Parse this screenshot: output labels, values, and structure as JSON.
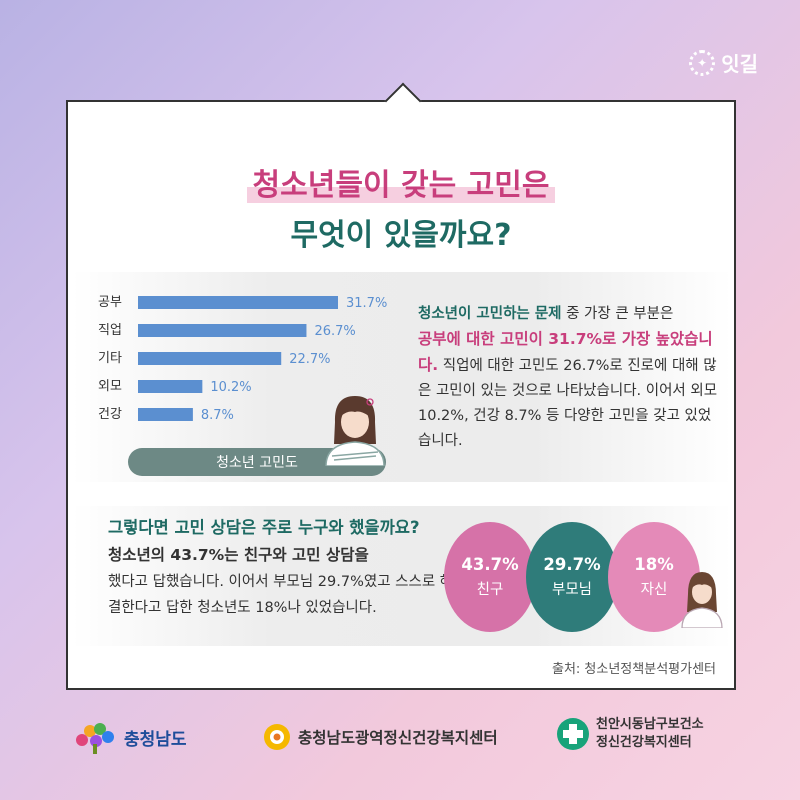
{
  "brand": {
    "name": "잇길"
  },
  "title": {
    "line1": "청소년들이 갖는 고민은",
    "line2": "무엇이 있을까요?"
  },
  "chart_data": {
    "type": "bar",
    "orientation": "horizontal",
    "categories": [
      "공부",
      "직업",
      "기타",
      "외모",
      "건강"
    ],
    "values": [
      31.7,
      26.7,
      22.7,
      10.2,
      8.7
    ],
    "value_labels": [
      "31.7%",
      "26.7%",
      "22.7%",
      "10.2%",
      "8.7%"
    ],
    "xlabel": "청소년 고민도",
    "bar_color": "#5b8fd0",
    "label_color": "#5b8fd0"
  },
  "summary": {
    "p1_green": "청소년이 고민하는 문제",
    "p1_rest": " 중 가장 큰 부분은",
    "p2_pink": "공부에 대한 고민이 31.7%로 가장 높았습니다.",
    "p3": " 직업에 대한 고민도 26.7%로 진로에 대해 많은 고민이 있는 것으로 나타났습니다. 이어서 외모 10.2%, 건강 8.7% 등 다양한 고민을 갖고 있었습니다."
  },
  "consult": {
    "title": "그렇다면 고민 상담은 주로 누구와 했을까요?",
    "lead": "청소년의 43.7%는 친구와 고민 상담을",
    "body": "했다고 답했습니다. 이어서 부모님 29.7%였고 스스로 해결한다고 답한 청소년도 18%나 있었습니다.",
    "bubbles": [
      {
        "pct": "43.7%",
        "label": "친구",
        "color": "#d672a8"
      },
      {
        "pct": "29.7%",
        "label": "부모님",
        "color": "#2f7c7a"
      },
      {
        "pct": "18%",
        "label": "자신",
        "color": "#e48ab8"
      }
    ]
  },
  "source": "출처: 청소년정책분석평가센터",
  "footer": {
    "logo1": "충청남도",
    "logo2": "충청남도광역정신건강복지센터",
    "logo3_line1": "천안시동남구보건소",
    "logo3_line2": "정신건강복지센터"
  }
}
